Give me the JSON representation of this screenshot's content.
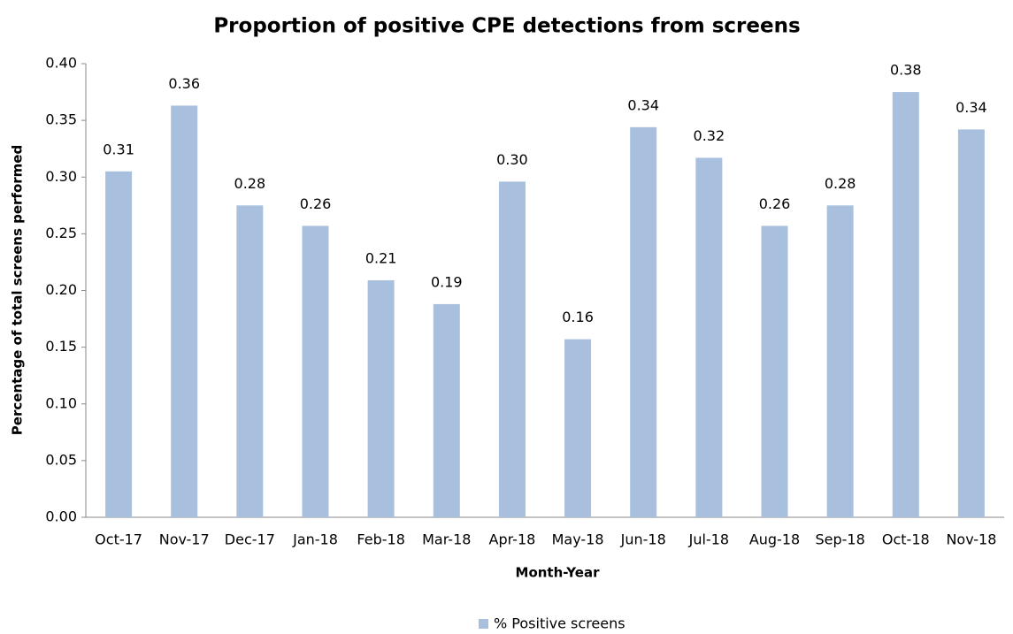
{
  "chart_data": {
    "type": "bar",
    "title": "Proportion of positive CPE detections from screens",
    "x_label": "Month-Year",
    "y_label": "Percentage of total screens performed",
    "categories": [
      "Oct-17",
      "Nov-17",
      "Dec-17",
      "Jan-18",
      "Feb-18",
      "Mar-18",
      "Apr-18",
      "May-18",
      "Jun-18",
      "Jul-18",
      "Aug-18",
      "Sep-18",
      "Oct-18",
      "Nov-18"
    ],
    "series": [
      {
        "name": "% Positive screens",
        "color": "#a8c0de",
        "values": [
          0.305,
          0.363,
          0.275,
          0.257,
          0.209,
          0.188,
          0.296,
          0.157,
          0.344,
          0.317,
          0.257,
          0.275,
          0.375,
          0.342
        ],
        "value_labels": [
          "0.31",
          "0.36",
          "0.28",
          "0.26",
          "0.21",
          "0.19",
          "0.30",
          "0.16",
          "0.34",
          "0.32",
          "0.26",
          "0.28",
          "0.38",
          "0.34"
        ]
      }
    ],
    "ylim": [
      0,
      0.4
    ],
    "yticks": [
      {
        "value": 0,
        "label": "0.00"
      },
      {
        "value": 0.05,
        "label": "0.05"
      },
      {
        "value": 0.1,
        "label": "0.10"
      },
      {
        "value": 0.15,
        "label": "0.15"
      },
      {
        "value": 0.2,
        "label": "0.20"
      },
      {
        "value": 0.25,
        "label": "0.25"
      },
      {
        "value": 0.3,
        "label": "0.30"
      },
      {
        "value": 0.35,
        "label": "0.35"
      },
      {
        "value": 0.4,
        "label": "0.40"
      }
    ],
    "grid": false,
    "legend": "bottom"
  }
}
